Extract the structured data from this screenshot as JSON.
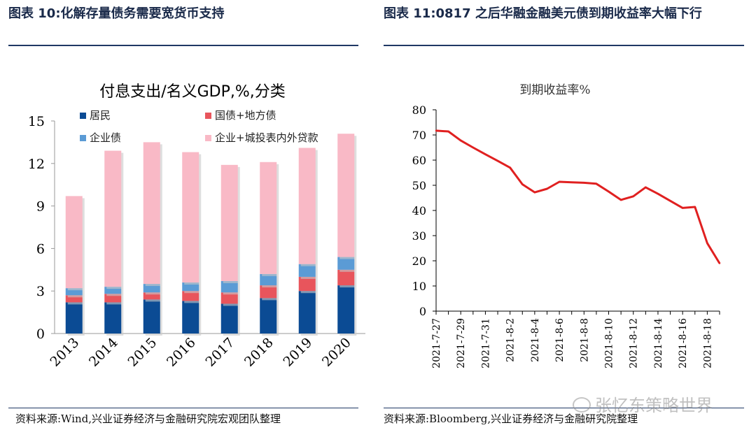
{
  "header": {
    "left_title": "图表 10:化解存量债务需要宽货币支持",
    "right_title": "图表 11:0817 之后华融金融美元债到期收益率大幅下行"
  },
  "source": {
    "left": "资料来源:Wind,兴业证券经济与金融研究院宏观团队整理",
    "right": "资料来源:Bloomberg,兴业证券经济与金融研究院整理"
  },
  "watermark": "张忆东策略世界",
  "colors": {
    "resident": "#0b4b94",
    "gov_local": "#e8555c",
    "corporate_bond": "#5b9bd5",
    "corporate_lgfv": "#f9b9c6",
    "line": "#e02020",
    "header_rule": "#1f3864"
  },
  "chart_data": [
    {
      "type": "bar",
      "stacked": true,
      "title": "付息支出/名义GDP,%,分类",
      "categories": [
        "2013",
        "2014",
        "2015",
        "2016",
        "2017",
        "2018",
        "2019",
        "2020"
      ],
      "ylim": [
        0,
        15
      ],
      "yticks": [
        "0",
        "3",
        "6",
        "9",
        "12",
        "15"
      ],
      "grid": false,
      "legend_position": "top",
      "series": [
        {
          "name": "居民",
          "color_key": "resident",
          "values": [
            2.2,
            2.2,
            2.4,
            2.3,
            2.1,
            2.5,
            3.0,
            3.4
          ]
        },
        {
          "name": "国债+地方债",
          "color_key": "gov_local",
          "values": [
            0.5,
            0.6,
            0.5,
            0.7,
            0.8,
            0.9,
            1.0,
            1.1
          ]
        },
        {
          "name": "企业债",
          "color_key": "corporate_bond",
          "values": [
            0.5,
            0.5,
            0.6,
            0.6,
            0.8,
            0.8,
            0.9,
            0.9
          ]
        },
        {
          "name": "企业+城投表内外贷款",
          "color_key": "corporate_lgfv",
          "values": [
            6.5,
            9.6,
            10.0,
            9.2,
            8.2,
            7.9,
            8.2,
            8.7
          ]
        }
      ]
    },
    {
      "type": "line",
      "title": "到期收益率%",
      "x": [
        "2021-7-27",
        "2021-7-28",
        "2021-7-29",
        "2021-7-30",
        "2021-7-31",
        "2021-8-1",
        "2021-8-2",
        "2021-8-3",
        "2021-8-4",
        "2021-8-5",
        "2021-8-6",
        "2021-8-7",
        "2021-8-8",
        "2021-8-9",
        "2021-8-10",
        "2021-8-11",
        "2021-8-12",
        "2021-8-13",
        "2021-8-14",
        "2021-8-15",
        "2021-8-16",
        "2021-8-17",
        "2021-8-18",
        "2021-8-19"
      ],
      "xticks": [
        "2021-7-27",
        "2021-7-29",
        "2021-7-31",
        "2021-8-2",
        "2021-8-4",
        "2021-8-6",
        "2021-8-8",
        "2021-8-10",
        "2021-8-12",
        "2021-8-14",
        "2021-8-16",
        "2021-8-18"
      ],
      "series": [
        {
          "color_key": "line",
          "values": [
            71.7,
            71.4,
            67.8,
            65.0,
            62.3,
            59.7,
            57.0,
            50.4,
            47.2,
            48.6,
            51.4,
            51.2,
            51.0,
            50.6,
            47.5,
            44.2,
            45.6,
            49.2,
            46.6,
            43.8,
            41.0,
            41.4,
            27.0,
            19.0
          ]
        }
      ],
      "ylim": [
        0,
        80
      ],
      "yticks": [
        "0",
        "10",
        "20",
        "30",
        "40",
        "50",
        "60",
        "70",
        "80"
      ],
      "grid": false
    }
  ]
}
